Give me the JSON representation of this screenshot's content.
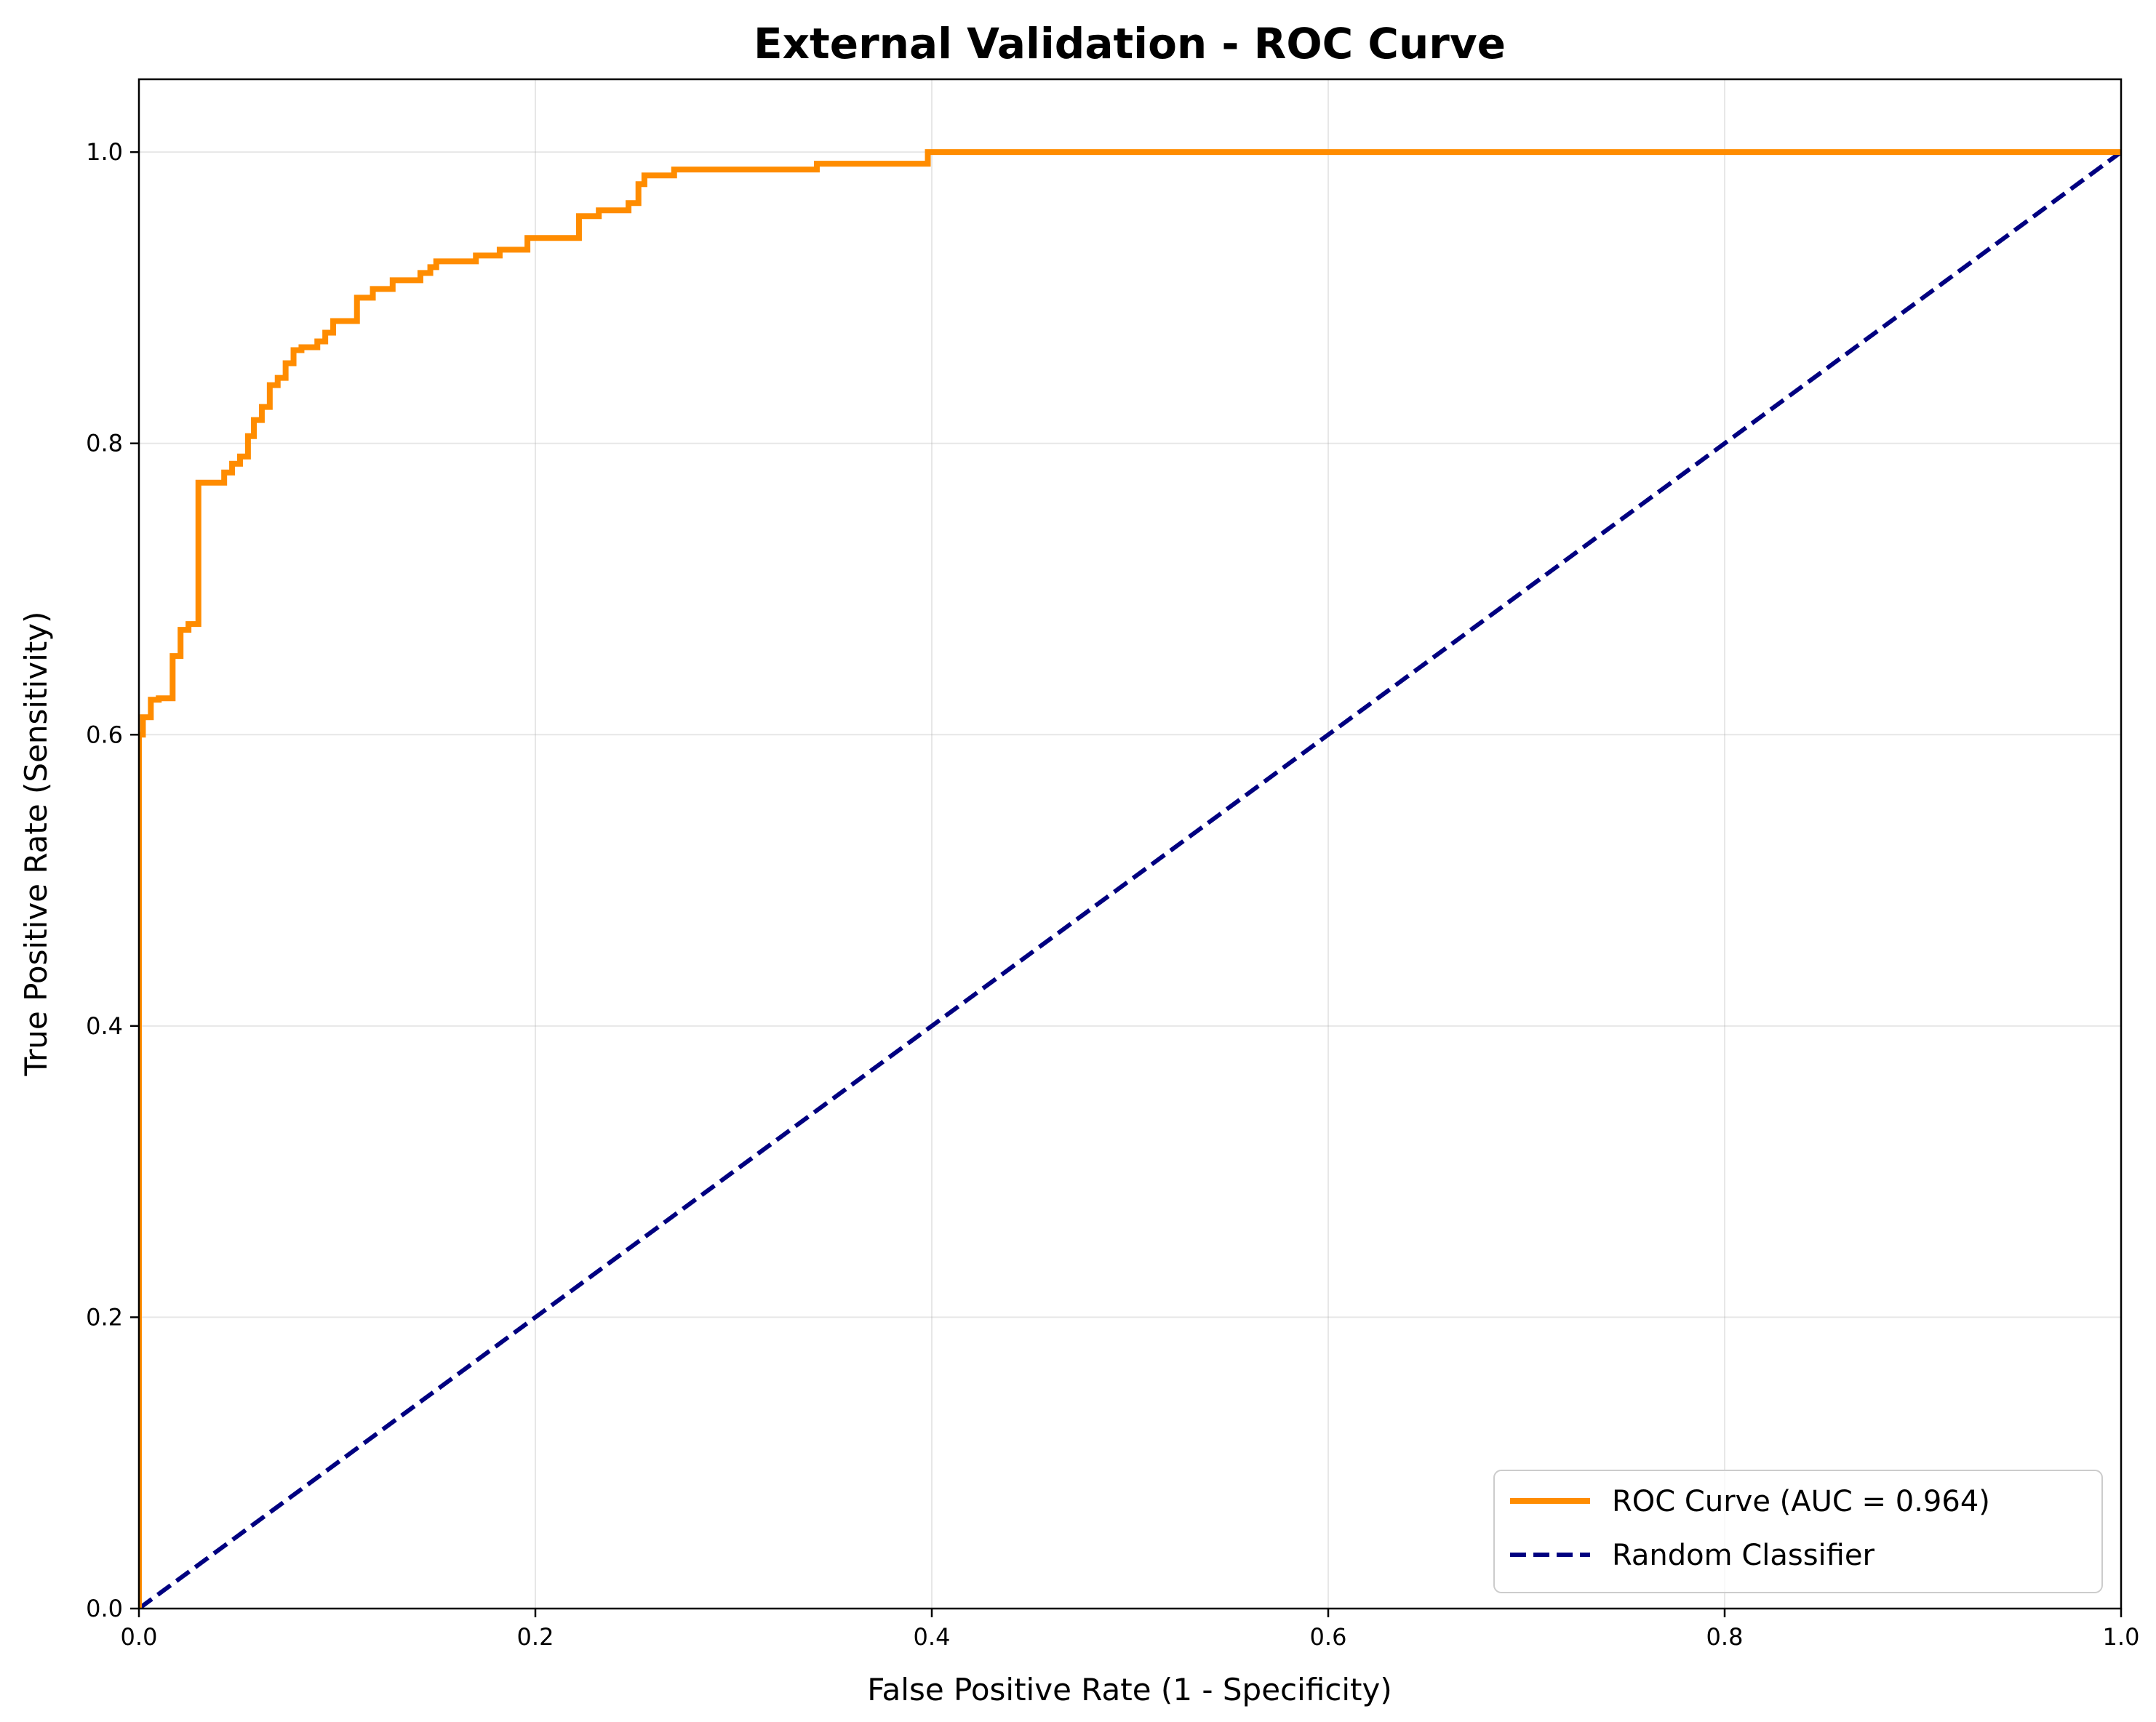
{
  "chart_data": {
    "type": "line",
    "title": "External Validation - ROC Curve",
    "xlabel": "False Positive Rate (1 - Specificity)",
    "ylabel": "True Positive Rate (Sensitivity)",
    "xlim": [
      0.0,
      1.0
    ],
    "ylim": [
      0.0,
      1.05
    ],
    "xticks": [
      0.0,
      0.2,
      0.4,
      0.6,
      0.8,
      1.0
    ],
    "xtick_labels": [
      "0.0",
      "0.2",
      "0.4",
      "0.6",
      "0.8",
      "1.0"
    ],
    "yticks": [
      0.0,
      0.2,
      0.4,
      0.6,
      0.8,
      1.0
    ],
    "ytick_labels": [
      "0.0",
      "0.2",
      "0.4",
      "0.6",
      "0.8",
      "1.0"
    ],
    "grid": true,
    "legend_position": "lower-right",
    "series": [
      {
        "name": "ROC Curve (AUC = 0.964)",
        "color": "#ff8c00",
        "style": "solid",
        "x": [
          0.0,
          0.0,
          0.002,
          0.002,
          0.006,
          0.006,
          0.01,
          0.01,
          0.017,
          0.017,
          0.021,
          0.021,
          0.025,
          0.025,
          0.03,
          0.03,
          0.043,
          0.043,
          0.047,
          0.047,
          0.051,
          0.051,
          0.055,
          0.055,
          0.058,
          0.058,
          0.062,
          0.062,
          0.066,
          0.066,
          0.07,
          0.07,
          0.074,
          0.074,
          0.078,
          0.078,
          0.082,
          0.082,
          0.09,
          0.09,
          0.094,
          0.094,
          0.098,
          0.098,
          0.11,
          0.11,
          0.118,
          0.118,
          0.128,
          0.128,
          0.142,
          0.142,
          0.147,
          0.147,
          0.15,
          0.15,
          0.17,
          0.17,
          0.182,
          0.182,
          0.196,
          0.196,
          0.222,
          0.222,
          0.232,
          0.232,
          0.247,
          0.247,
          0.252,
          0.252,
          0.255,
          0.255,
          0.27,
          0.27,
          0.342,
          0.342,
          0.398,
          0.398,
          1.0
        ],
        "y": [
          0.0,
          0.6,
          0.6,
          0.612,
          0.612,
          0.624,
          0.624,
          0.625,
          0.625,
          0.654,
          0.654,
          0.672,
          0.672,
          0.676,
          0.676,
          0.773,
          0.773,
          0.78,
          0.78,
          0.786,
          0.786,
          0.791,
          0.791,
          0.805,
          0.805,
          0.816,
          0.816,
          0.825,
          0.825,
          0.84,
          0.84,
          0.845,
          0.845,
          0.855,
          0.855,
          0.864,
          0.864,
          0.866,
          0.866,
          0.87,
          0.87,
          0.876,
          0.876,
          0.884,
          0.884,
          0.9,
          0.9,
          0.906,
          0.906,
          0.912,
          0.912,
          0.917,
          0.917,
          0.921,
          0.921,
          0.925,
          0.925,
          0.929,
          0.929,
          0.933,
          0.933,
          0.941,
          0.941,
          0.956,
          0.956,
          0.96,
          0.96,
          0.965,
          0.965,
          0.978,
          0.978,
          0.984,
          0.984,
          0.988,
          0.988,
          0.992,
          0.992,
          1.0,
          1.0
        ]
      },
      {
        "name": "Random Classifier",
        "color": "#000080",
        "style": "dashed",
        "x": [
          0.0,
          1.0
        ],
        "y": [
          0.0,
          1.0
        ]
      }
    ]
  }
}
